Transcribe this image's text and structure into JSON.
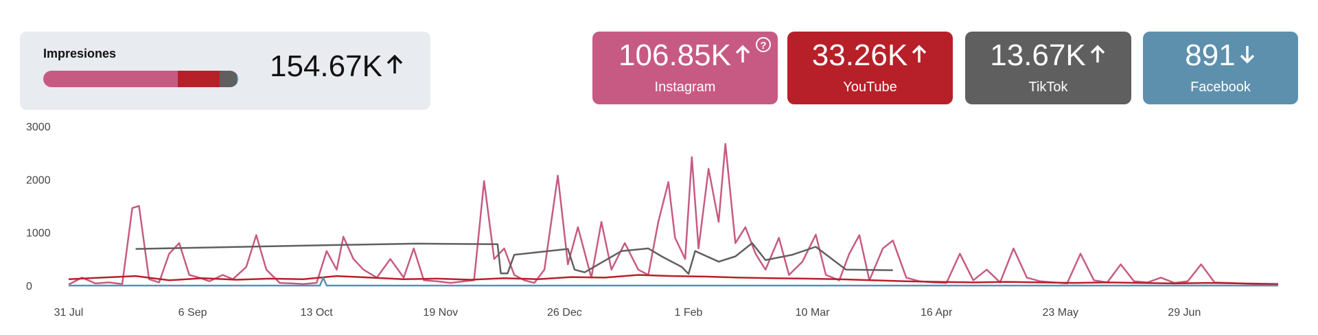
{
  "summary": {
    "title": "Impresiones",
    "total": "154.67K",
    "trend": "up",
    "shares": [
      {
        "platform": "Instagram",
        "fraction": 0.691,
        "color": "#c75a82"
      },
      {
        "platform": "YouTube",
        "fraction": 0.215,
        "color": "#b72029"
      },
      {
        "platform": "TikTok",
        "fraction": 0.088,
        "color": "#5f5f5f"
      },
      {
        "platform": "Facebook",
        "fraction": 0.006,
        "color": "#5d90ad"
      }
    ]
  },
  "kpis": [
    {
      "value": "106.85K",
      "label": "Instagram",
      "trend": "up",
      "color": "#c75a82",
      "help": "?"
    },
    {
      "value": "33.26K",
      "label": "YouTube",
      "trend": "up",
      "color": "#b72029"
    },
    {
      "value": "13.67K",
      "label": "TikTok",
      "trend": "up",
      "color": "#5f5f5f"
    },
    {
      "value": "891",
      "label": "Facebook",
      "trend": "down",
      "color": "#5d90ad"
    }
  ],
  "chart_data": {
    "type": "line",
    "x_ticks": [
      "31 Jul",
      "6 Sep",
      "13 Oct",
      "19 Nov",
      "26 Dec",
      "1 Feb",
      "10 Mar",
      "16 Apr",
      "23 May",
      "29 Jun"
    ],
    "x_range": [
      "31 Jul",
      "27 Jul"
    ],
    "ylim": [
      0,
      3000
    ],
    "y_ticks": [
      0,
      1000,
      2000,
      3000
    ],
    "grid": false,
    "series": [
      {
        "color": "#c75a82",
        "points": [
          [
            "31 Jul",
            20
          ],
          [
            "4 Aug",
            150
          ],
          [
            "8 Aug",
            40
          ],
          [
            "12 Aug",
            60
          ],
          [
            "16 Aug",
            30
          ],
          [
            "19 Aug",
            1460
          ],
          [
            "21 Aug",
            1500
          ],
          [
            "24 Aug",
            120
          ],
          [
            "27 Aug",
            60
          ],
          [
            "30 Aug",
            600
          ],
          [
            "2 Sep",
            800
          ],
          [
            "5 Sep",
            200
          ],
          [
            "8 Sep",
            150
          ],
          [
            "11 Sep",
            80
          ],
          [
            "15 Sep",
            200
          ],
          [
            "18 Sep",
            120
          ],
          [
            "22 Sep",
            350
          ],
          [
            "25 Sep",
            950
          ],
          [
            "28 Sep",
            300
          ],
          [
            "2 Oct",
            50
          ],
          [
            "6 Oct",
            40
          ],
          [
            "9 Oct",
            30
          ],
          [
            "13 Oct",
            50
          ],
          [
            "16 Oct",
            650
          ],
          [
            "19 Oct",
            300
          ],
          [
            "21 Oct",
            920
          ],
          [
            "24 Oct",
            500
          ],
          [
            "27 Oct",
            300
          ],
          [
            "31 Oct",
            150
          ],
          [
            "4 Nov",
            500
          ],
          [
            "8 Nov",
            150
          ],
          [
            "11 Nov",
            700
          ],
          [
            "14 Nov",
            100
          ],
          [
            "18 Nov",
            80
          ],
          [
            "22 Nov",
            50
          ],
          [
            "26 Nov",
            80
          ],
          [
            "29 Nov",
            100
          ],
          [
            "2 Dec",
            1970
          ],
          [
            "5 Dec",
            500
          ],
          [
            "8 Dec",
            700
          ],
          [
            "11 Dec",
            200
          ],
          [
            "14 Dec",
            100
          ],
          [
            "17 Dec",
            50
          ],
          [
            "20 Dec",
            300
          ],
          [
            "24 Dec",
            2070
          ],
          [
            "27 Dec",
            400
          ],
          [
            "30 Dec",
            1100
          ],
          [
            "3 Jan",
            150
          ],
          [
            "6 Jan",
            1200
          ],
          [
            "9 Jan",
            300
          ],
          [
            "13 Jan",
            800
          ],
          [
            "17 Jan",
            300
          ],
          [
            "20 Jan",
            200
          ],
          [
            "23 Jan",
            1200
          ],
          [
            "26 Jan",
            1950
          ],
          [
            "28 Jan",
            900
          ],
          [
            "31 Jan",
            500
          ],
          [
            "2 Feb",
            2420
          ],
          [
            "4 Feb",
            700
          ],
          [
            "7 Feb",
            2200
          ],
          [
            "10 Feb",
            1200
          ],
          [
            "12 Feb",
            2670
          ],
          [
            "15 Feb",
            800
          ],
          [
            "18 Feb",
            1100
          ],
          [
            "21 Feb",
            600
          ],
          [
            "24 Feb",
            300
          ],
          [
            "28 Feb",
            900
          ],
          [
            "3 Mar",
            200
          ],
          [
            "7 Mar",
            450
          ],
          [
            "11 Mar",
            960
          ],
          [
            "14 Mar",
            200
          ],
          [
            "18 Mar",
            100
          ],
          [
            "21 Mar",
            600
          ],
          [
            "24 Mar",
            950
          ],
          [
            "27 Mar",
            100
          ],
          [
            "31 Mar",
            700
          ],
          [
            "3 Apr",
            850
          ],
          [
            "7 Apr",
            150
          ],
          [
            "11 Apr",
            80
          ],
          [
            "15 Apr",
            60
          ],
          [
            "19 Apr",
            50
          ],
          [
            "23 Apr",
            600
          ],
          [
            "27 Apr",
            100
          ],
          [
            "1 May",
            300
          ],
          [
            "5 May",
            60
          ],
          [
            "9 May",
            700
          ],
          [
            "13 May",
            150
          ],
          [
            "17 May",
            80
          ],
          [
            "21 May",
            60
          ],
          [
            "25 May",
            40
          ],
          [
            "29 May",
            600
          ],
          [
            "2 Jun",
            100
          ],
          [
            "6 Jun",
            60
          ],
          [
            "10 Jun",
            400
          ],
          [
            "14 Jun",
            80
          ],
          [
            "18 Jun",
            60
          ],
          [
            "22 Jun",
            150
          ],
          [
            "26 Jun",
            50
          ],
          [
            "30 Jun",
            80
          ],
          [
            "4 Jul",
            400
          ],
          [
            "8 Jul",
            60
          ],
          [
            "12 Jul",
            50
          ],
          [
            "16 Jul",
            40
          ],
          [
            "20 Jul",
            30
          ],
          [
            "27 Jul",
            20
          ]
        ]
      },
      {
        "color": "#b72029",
        "points": [
          [
            "31 Jul",
            120
          ],
          [
            "10 Aug",
            150
          ],
          [
            "20 Aug",
            180
          ],
          [
            "30 Aug",
            100
          ],
          [
            "9 Sep",
            140
          ],
          [
            "19 Sep",
            110
          ],
          [
            "29 Sep",
            130
          ],
          [
            "9 Oct",
            120
          ],
          [
            "19 Oct",
            180
          ],
          [
            "29 Oct",
            150
          ],
          [
            "8 Nov",
            120
          ],
          [
            "18 Nov",
            130
          ],
          [
            "28 Nov",
            110
          ],
          [
            "8 Dec",
            140
          ],
          [
            "18 Dec",
            120
          ],
          [
            "28 Dec",
            160
          ],
          [
            "7 Jan",
            150
          ],
          [
            "17 Jan",
            200
          ],
          [
            "27 Jan",
            180
          ],
          [
            "6 Feb",
            170
          ],
          [
            "16 Feb",
            150
          ],
          [
            "26 Feb",
            140
          ],
          [
            "8 Mar",
            130
          ],
          [
            "18 Mar",
            120
          ],
          [
            "28 Mar",
            100
          ],
          [
            "7 Apr",
            80
          ],
          [
            "17 Apr",
            70
          ],
          [
            "27 Apr",
            60
          ],
          [
            "7 May",
            70
          ],
          [
            "17 May",
            60
          ],
          [
            "27 May",
            50
          ],
          [
            "6 Jun",
            60
          ],
          [
            "16 Jun",
            50
          ],
          [
            "26 Jun",
            40
          ],
          [
            "6 Jul",
            50
          ],
          [
            "16 Jul",
            40
          ],
          [
            "27 Jul",
            30
          ]
        ]
      },
      {
        "color": "#5f5f5f",
        "points": [
          [
            "20 Aug",
            690
          ],
          [
            "15 Oct",
            760
          ],
          [
            "12 Nov",
            790
          ],
          [
            "6 Dec",
            780
          ],
          [
            "7 Dec",
            230
          ],
          [
            "9 Dec",
            230
          ],
          [
            "11 Dec",
            580
          ],
          [
            "27 Dec",
            690
          ],
          [
            "29 Dec",
            300
          ],
          [
            "1 Jan",
            250
          ],
          [
            "12 Jan",
            650
          ],
          [
            "20 Jan",
            700
          ],
          [
            "24 Jan",
            550
          ],
          [
            "30 Jan",
            350
          ],
          [
            "1 Feb",
            220
          ],
          [
            "3 Feb",
            650
          ],
          [
            "10 Feb",
            450
          ],
          [
            "15 Feb",
            550
          ],
          [
            "20 Feb",
            800
          ],
          [
            "24 Feb",
            480
          ],
          [
            "4 Mar",
            580
          ],
          [
            "11 Mar",
            730
          ],
          [
            "20 Mar",
            300
          ],
          [
            "3 Apr",
            290
          ]
        ]
      },
      {
        "color": "#5d90ad",
        "points": [
          [
            "31 Jul",
            0
          ],
          [
            "14 Oct",
            0
          ],
          [
            "15 Oct",
            150
          ],
          [
            "16 Oct",
            0
          ],
          [
            "27 Jul",
            0
          ]
        ]
      }
    ]
  }
}
